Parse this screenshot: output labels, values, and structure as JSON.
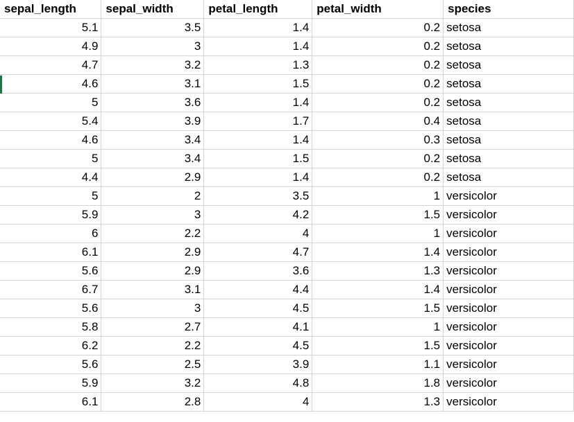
{
  "sheet": {
    "headers": [
      "sepal_length",
      "sepal_width",
      "petal_length",
      "petal_width",
      "species"
    ],
    "rows": [
      [
        "5.1",
        "3.5",
        "1.4",
        "0.2",
        "setosa"
      ],
      [
        "4.9",
        "3",
        "1.4",
        "0.2",
        "setosa"
      ],
      [
        "4.7",
        "3.2",
        "1.3",
        "0.2",
        "setosa"
      ],
      [
        "4.6",
        "3.1",
        "1.5",
        "0.2",
        "setosa"
      ],
      [
        "5",
        "3.6",
        "1.4",
        "0.2",
        "setosa"
      ],
      [
        "5.4",
        "3.9",
        "1.7",
        "0.4",
        "setosa"
      ],
      [
        "4.6",
        "3.4",
        "1.4",
        "0.3",
        "setosa"
      ],
      [
        "5",
        "3.4",
        "1.5",
        "0.2",
        "setosa"
      ],
      [
        "4.4",
        "2.9",
        "1.4",
        "0.2",
        "setosa"
      ],
      [
        "5",
        "2",
        "3.5",
        "1",
        "versicolor"
      ],
      [
        "5.9",
        "3",
        "4.2",
        "1.5",
        "versicolor"
      ],
      [
        "6",
        "2.2",
        "4",
        "1",
        "versicolor"
      ],
      [
        "6.1",
        "2.9",
        "4.7",
        "1.4",
        "versicolor"
      ],
      [
        "5.6",
        "2.9",
        "3.6",
        "1.3",
        "versicolor"
      ],
      [
        "6.7",
        "3.1",
        "4.4",
        "1.4",
        "versicolor"
      ],
      [
        "5.6",
        "3",
        "4.5",
        "1.5",
        "versicolor"
      ],
      [
        "5.8",
        "2.7",
        "4.1",
        "1",
        "versicolor"
      ],
      [
        "6.2",
        "2.2",
        "4.5",
        "1.5",
        "versicolor"
      ],
      [
        "5.6",
        "2.5",
        "3.9",
        "1.1",
        "versicolor"
      ],
      [
        "5.9",
        "3.2",
        "4.8",
        "1.8",
        "versicolor"
      ],
      [
        "6.1",
        "2.8",
        "4",
        "1.3",
        "versicolor"
      ]
    ]
  },
  "colors": {
    "gridline": "#d4d4d4",
    "row_marker": "#217346",
    "text": "#000000"
  }
}
